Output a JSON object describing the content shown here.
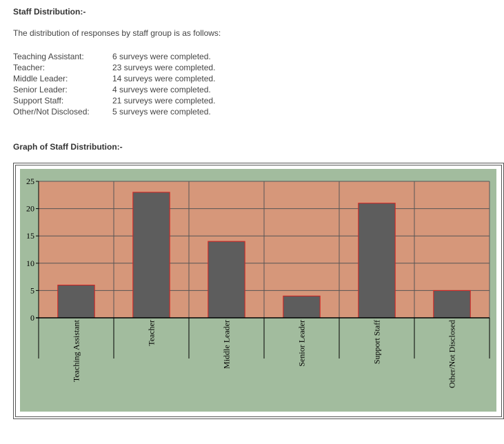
{
  "section_title": "Staff Distribution:-",
  "intro": "The distribution of responses by staff group is as follows:",
  "distribution": [
    {
      "label": "Teaching Assistant:",
      "text": "6 surveys were completed."
    },
    {
      "label": "Teacher:",
      "text": "23 surveys were completed."
    },
    {
      "label": "Middle Leader:",
      "text": "14 surveys were completed."
    },
    {
      "label": "Senior Leader:",
      "text": "4 surveys were completed."
    },
    {
      "label": "Support Staff:",
      "text": "21 surveys were completed."
    },
    {
      "label": "Other/Not Disclosed:",
      "text": "5 surveys were completed."
    }
  ],
  "graph_title": "Graph of Staff Distribution:-",
  "chart_data": {
    "type": "bar",
    "categories": [
      "Teaching Assistant",
      "Teacher",
      "Middle Leader",
      "Senior Leader",
      "Support Staff",
      "Other/Not Disclosed"
    ],
    "values": [
      6,
      23,
      14,
      4,
      21,
      5
    ],
    "ylim": [
      0,
      25
    ],
    "yticks": [
      0,
      5,
      10,
      15,
      20,
      25
    ],
    "grid": true,
    "colors": {
      "background": "#a2bc9e",
      "plot_area": "#d6977a",
      "bar_fill": "#5d5d5d",
      "bar_edge": "#d42020",
      "grid": "#555555"
    }
  }
}
